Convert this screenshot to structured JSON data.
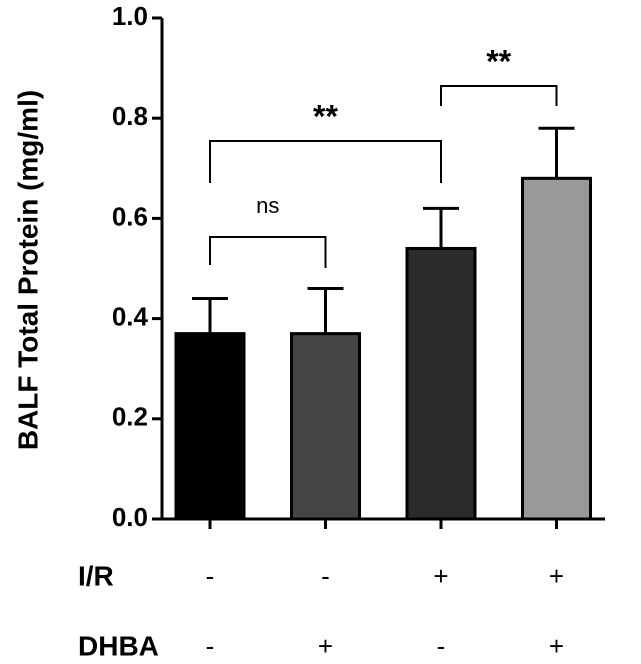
{
  "chart_data": {
    "type": "bar",
    "y_label": "BALF Total Protein (mg/ml)",
    "values": [
      0.37,
      0.37,
      0.54,
      0.68
    ],
    "errors": [
      0.07,
      0.09,
      0.08,
      0.1
    ],
    "colors": [
      "#000000",
      "#444444",
      "#2b2b2b",
      "#999999"
    ],
    "ylim": [
      0,
      1.0
    ],
    "yticks": [
      {
        "value": 0,
        "label": "0.0"
      },
      {
        "value": 0.2,
        "label": "0.2"
      },
      {
        "value": 0.4,
        "label": "0.4"
      },
      {
        "value": 0.6,
        "label": "0.6"
      },
      {
        "value": 0.8,
        "label": "0.8"
      },
      {
        "value": 1.0,
        "label": "1.0"
      }
    ],
    "conditions": [
      {
        "label": "I/R",
        "values": [
          "-",
          "-",
          "+",
          "+"
        ]
      },
      {
        "label": "DHBA",
        "values": [
          "-",
          "+",
          "-",
          "+"
        ]
      }
    ],
    "annotations": [
      {
        "from": 0,
        "to": 1,
        "label": "ns"
      },
      {
        "from": 0,
        "to": 2,
        "label": "**"
      },
      {
        "from": 2,
        "to": 3,
        "label": "**"
      }
    ]
  }
}
